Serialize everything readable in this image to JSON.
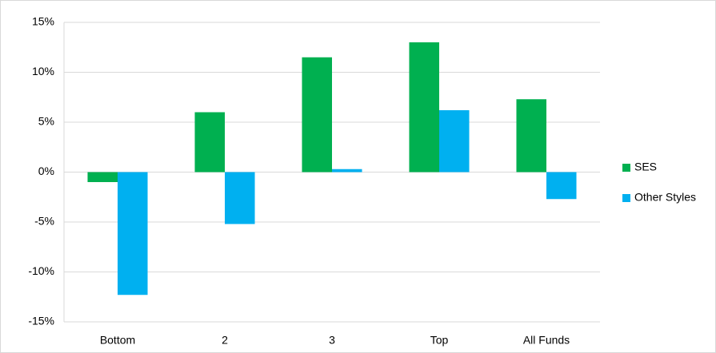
{
  "chart_data": {
    "type": "bar",
    "categories": [
      "Bottom",
      "2",
      "3",
      "Top",
      "All Funds"
    ],
    "series": [
      {
        "name": "SES",
        "color": "#00b050",
        "values": [
          -1.0,
          6.0,
          11.5,
          13.0,
          7.3
        ]
      },
      {
        "name": "Other Styles",
        "color": "#00b0f0",
        "values": [
          -12.3,
          -5.2,
          0.3,
          6.2,
          -2.7
        ]
      }
    ],
    "ylim": [
      -15,
      15
    ],
    "yticks": [
      {
        "value": -15,
        "label": "-15%"
      },
      {
        "value": -10,
        "label": "-10%"
      },
      {
        "value": -5,
        "label": "-5%"
      },
      {
        "value": 0,
        "label": "0%"
      },
      {
        "value": 5,
        "label": "5%"
      },
      {
        "value": 10,
        "label": "10%"
      },
      {
        "value": 15,
        "label": "15%"
      }
    ],
    "grid": true,
    "legend": "right"
  }
}
